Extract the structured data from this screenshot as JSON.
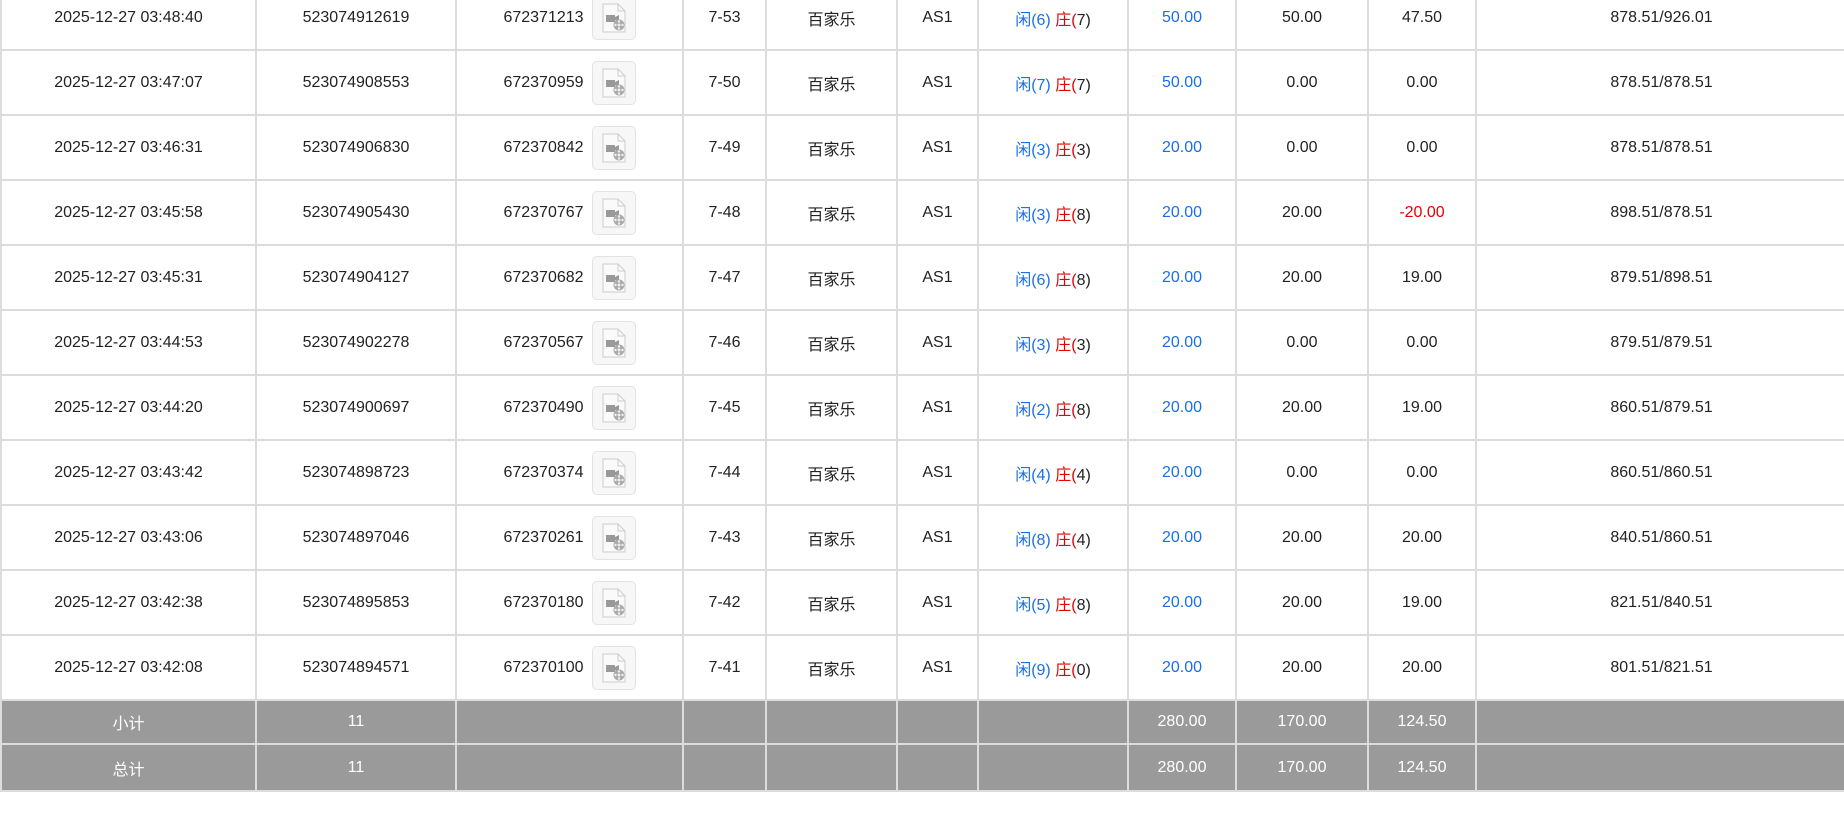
{
  "rows": [
    {
      "time": "2025-12-27 03:48:40",
      "bet_id": "523074912619",
      "round_id": "672371213",
      "shoe": "7-53",
      "game": "百家乐",
      "table": "AS1",
      "player": "闲(6)",
      "banker": "庄(7)",
      "bet": "50.00",
      "valid": "50.00",
      "win": "47.50",
      "balance": "878.51/926.01"
    },
    {
      "time": "2025-12-27 03:47:07",
      "bet_id": "523074908553",
      "round_id": "672370959",
      "shoe": "7-50",
      "game": "百家乐",
      "table": "AS1",
      "player": "闲(7)",
      "banker": "庄(7)",
      "bet": "50.00",
      "valid": "0.00",
      "win": "0.00",
      "balance": "878.51/878.51"
    },
    {
      "time": "2025-12-27 03:46:31",
      "bet_id": "523074906830",
      "round_id": "672370842",
      "shoe": "7-49",
      "game": "百家乐",
      "table": "AS1",
      "player": "闲(3)",
      "banker": "庄(3)",
      "bet": "20.00",
      "valid": "0.00",
      "win": "0.00",
      "balance": "878.51/878.51"
    },
    {
      "time": "2025-12-27 03:45:58",
      "bet_id": "523074905430",
      "round_id": "672370767",
      "shoe": "7-48",
      "game": "百家乐",
      "table": "AS1",
      "player": "闲(3)",
      "banker": "庄(8)",
      "bet": "20.00",
      "valid": "20.00",
      "win": "-20.00",
      "balance": "898.51/878.51"
    },
    {
      "time": "2025-12-27 03:45:31",
      "bet_id": "523074904127",
      "round_id": "672370682",
      "shoe": "7-47",
      "game": "百家乐",
      "table": "AS1",
      "player": "闲(6)",
      "banker": "庄(8)",
      "bet": "20.00",
      "valid": "20.00",
      "win": "19.00",
      "balance": "879.51/898.51"
    },
    {
      "time": "2025-12-27 03:44:53",
      "bet_id": "523074902278",
      "round_id": "672370567",
      "shoe": "7-46",
      "game": "百家乐",
      "table": "AS1",
      "player": "闲(3)",
      "banker": "庄(3)",
      "bet": "20.00",
      "valid": "0.00",
      "win": "0.00",
      "balance": "879.51/879.51"
    },
    {
      "time": "2025-12-27 03:44:20",
      "bet_id": "523074900697",
      "round_id": "672370490",
      "shoe": "7-45",
      "game": "百家乐",
      "table": "AS1",
      "player": "闲(2)",
      "banker": "庄(8)",
      "bet": "20.00",
      "valid": "20.00",
      "win": "19.00",
      "balance": "860.51/879.51"
    },
    {
      "time": "2025-12-27 03:43:42",
      "bet_id": "523074898723",
      "round_id": "672370374",
      "shoe": "7-44",
      "game": "百家乐",
      "table": "AS1",
      "player": "闲(4)",
      "banker": "庄(4)",
      "bet": "20.00",
      "valid": "0.00",
      "win": "0.00",
      "balance": "860.51/860.51"
    },
    {
      "time": "2025-12-27 03:43:06",
      "bet_id": "523074897046",
      "round_id": "672370261",
      "shoe": "7-43",
      "game": "百家乐",
      "table": "AS1",
      "player": "闲(8)",
      "banker": "庄(4)",
      "bet": "20.00",
      "valid": "20.00",
      "win": "20.00",
      "balance": "840.51/860.51"
    },
    {
      "time": "2025-12-27 03:42:38",
      "bet_id": "523074895853",
      "round_id": "672370180",
      "shoe": "7-42",
      "game": "百家乐",
      "table": "AS1",
      "player": "闲(5)",
      "banker": "庄(8)",
      "bet": "20.00",
      "valid": "20.00",
      "win": "19.00",
      "balance": "821.51/840.51"
    },
    {
      "time": "2025-12-27 03:42:08",
      "bet_id": "523074894571",
      "round_id": "672370100",
      "shoe": "7-41",
      "game": "百家乐",
      "table": "AS1",
      "player": "闲(9)",
      "banker": "庄(0)",
      "bet": "20.00",
      "valid": "20.00",
      "win": "20.00",
      "balance": "801.51/821.51"
    }
  ],
  "subtotal": {
    "label": "小计",
    "count": "11",
    "bet": "280.00",
    "valid": "170.00",
    "win": "124.50"
  },
  "total": {
    "label": "总计",
    "count": "11",
    "bet": "280.00",
    "valid": "170.00",
    "win": "124.50"
  },
  "colors": {
    "player": "#1a6fe6",
    "banker": "#e60000",
    "negative": "#e60000",
    "summary_bg": "#9a9a9a"
  },
  "icons": {
    "replay": "video-file-icon"
  }
}
